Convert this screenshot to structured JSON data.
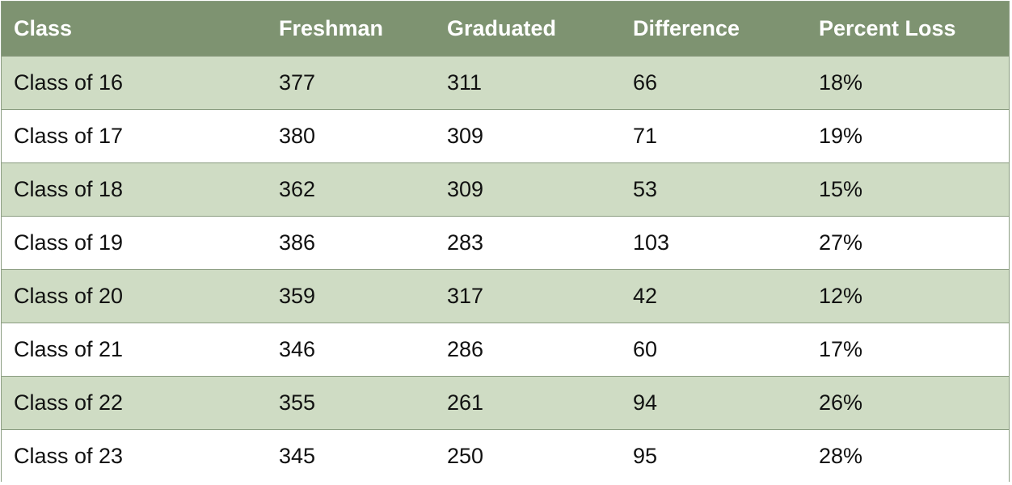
{
  "table": {
    "header": [
      "Class",
      "Freshman",
      "Graduated",
      "Difference",
      "Percent Loss"
    ],
    "rows": [
      [
        "Class of 16",
        377,
        311,
        66,
        "18%"
      ],
      [
        "Class of 17",
        380,
        309,
        71,
        "19%"
      ],
      [
        "Class of 18",
        362,
        309,
        53,
        "15%"
      ],
      [
        "Class of 19",
        386,
        283,
        103,
        "27%"
      ],
      [
        "Class of 20",
        359,
        317,
        42,
        "12%"
      ],
      [
        "Class of 21",
        346,
        286,
        60,
        "17%"
      ],
      [
        "Class of 22",
        355,
        261,
        94,
        "26%"
      ],
      [
        "Class of 23",
        345,
        250,
        95,
        "28%"
      ]
    ]
  }
}
